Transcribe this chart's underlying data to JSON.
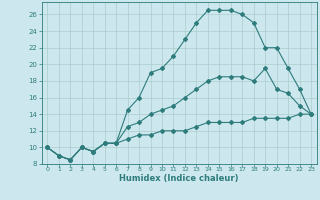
{
  "xlabel": "Humidex (Indice chaleur)",
  "xlim": [
    -0.5,
    23.5
  ],
  "ylim": [
    8,
    27.5
  ],
  "yticks": [
    8,
    10,
    12,
    14,
    16,
    18,
    20,
    22,
    24,
    26
  ],
  "xticks": [
    0,
    1,
    2,
    3,
    4,
    5,
    6,
    7,
    8,
    9,
    10,
    11,
    12,
    13,
    14,
    15,
    16,
    17,
    18,
    19,
    20,
    21,
    22,
    23
  ],
  "bg_color": "#cce8ee",
  "line_color": "#2e7c7c",
  "grid_color": "#aacccc",
  "curve1_x": [
    0,
    1,
    2,
    3,
    4,
    5,
    6,
    7,
    8,
    9,
    10,
    11,
    12,
    13,
    14,
    15,
    16,
    17,
    18,
    19,
    20,
    21,
    22,
    23
  ],
  "curve1_y": [
    10,
    9,
    8.5,
    10,
    9.5,
    10.5,
    10.5,
    14.5,
    16,
    19,
    19.5,
    21,
    23,
    25,
    26.5,
    26.5,
    26.5,
    26,
    25,
    22,
    22,
    19.5,
    17,
    14
  ],
  "curve2_x": [
    0,
    1,
    2,
    3,
    4,
    5,
    6,
    7,
    8,
    9,
    10,
    11,
    12,
    13,
    14,
    15,
    16,
    17,
    18,
    19,
    20,
    21,
    22,
    23
  ],
  "curve2_y": [
    10,
    9,
    8.5,
    10,
    9.5,
    10.5,
    10.5,
    12.5,
    13,
    14,
    14.5,
    15,
    16,
    17,
    18,
    18.5,
    18.5,
    18.5,
    18,
    19.5,
    17,
    16.5,
    15,
    14
  ],
  "curve3_x": [
    0,
    1,
    2,
    3,
    4,
    5,
    6,
    7,
    8,
    9,
    10,
    11,
    12,
    13,
    14,
    15,
    16,
    17,
    18,
    19,
    20,
    21,
    22,
    23
  ],
  "curve3_y": [
    10,
    9,
    8.5,
    10,
    9.5,
    10.5,
    10.5,
    11,
    11.5,
    11.5,
    12,
    12,
    12,
    12.5,
    13,
    13,
    13,
    13,
    13.5,
    13.5,
    13.5,
    13.5,
    14,
    14
  ]
}
